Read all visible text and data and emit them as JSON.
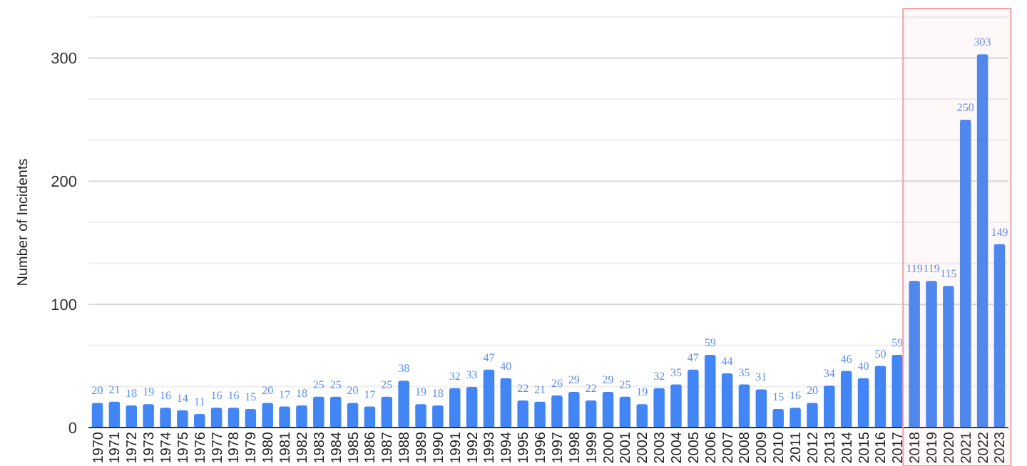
{
  "chart_data": {
    "type": "bar",
    "ylabel": "Number of Incidents",
    "categories": [
      "1970",
      "1971",
      "1972",
      "1973",
      "1974",
      "1975",
      "1976",
      "1977",
      "1978",
      "1979",
      "1980",
      "1981",
      "1982",
      "1983",
      "1984",
      "1985",
      "1986",
      "1987",
      "1988",
      "1989",
      "1990",
      "1991",
      "1992",
      "1993",
      "1994",
      "1995",
      "1996",
      "1997",
      "1998",
      "1999",
      "2000",
      "2001",
      "2002",
      "2003",
      "2004",
      "2005",
      "2006",
      "2007",
      "2008",
      "2009",
      "2010",
      "2011",
      "2012",
      "2013",
      "2014",
      "2015",
      "2016",
      "2017",
      "2018",
      "2019",
      "2020",
      "2021",
      "2022",
      "2023"
    ],
    "values": [
      20,
      21,
      18,
      19,
      16,
      14,
      11,
      16,
      16,
      15,
      20,
      17,
      18,
      25,
      25,
      20,
      17,
      25,
      38,
      19,
      18,
      32,
      33,
      47,
      40,
      22,
      21,
      26,
      29,
      22,
      29,
      25,
      19,
      32,
      35,
      47,
      59,
      44,
      35,
      31,
      15,
      16,
      20,
      34,
      46,
      40,
      50,
      59,
      119,
      119,
      115,
      250,
      303,
      149
    ],
    "color": "#4285f4",
    "ylim": [
      0,
      333.3
    ],
    "yticks": [
      0,
      {
        "value": 33.3,
        "label": null
      },
      {
        "value": 66.7,
        "label": null
      },
      100,
      {
        "value": 133.3,
        "label": null
      },
      {
        "value": 166.7,
        "label": null
      },
      200,
      {
        "value": 233.3,
        "label": null
      },
      {
        "value": 266.7,
        "label": null
      },
      300,
      {
        "value": 333.3,
        "label": null
      }
    ],
    "grid": "y",
    "data_labels": true,
    "bands": [
      {
        "axis": "x",
        "from": "2018",
        "to": "2023",
        "color": "#f4a0a8"
      }
    ]
  }
}
